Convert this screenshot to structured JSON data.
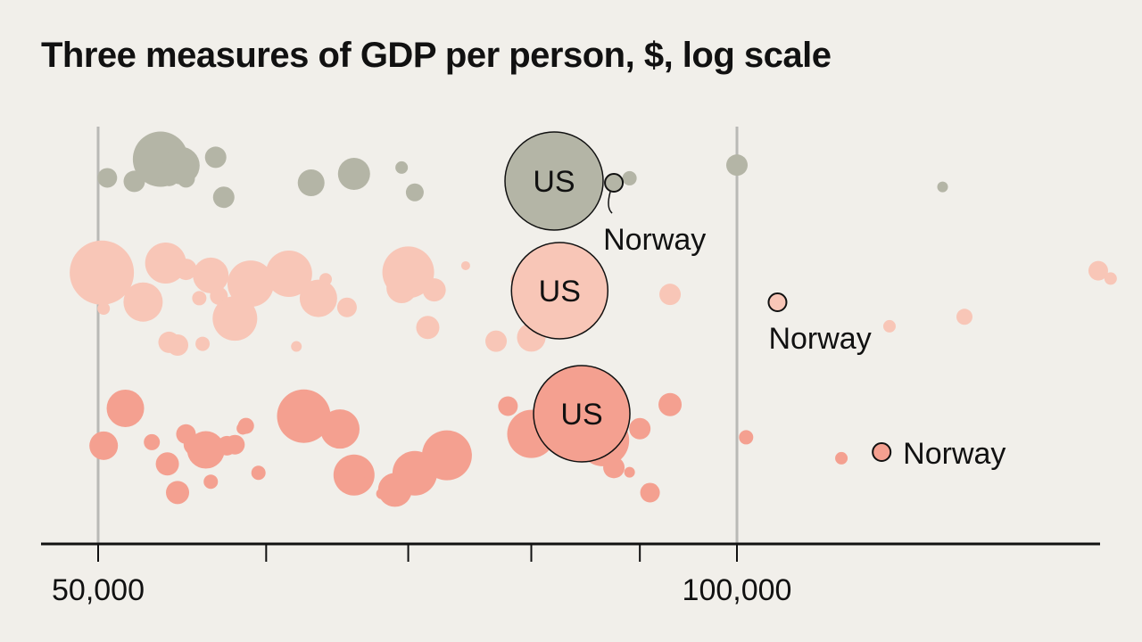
{
  "chart_data": {
    "type": "scatter",
    "title": "Three measures of GDP per person, $, log scale",
    "x_scale": "log",
    "xlim": [
      48000,
      150000
    ],
    "x_ticks": [
      50000,
      100000
    ],
    "x_tick_labels": [
      "50,000",
      "100,000"
    ],
    "minor_ticks": [
      60000,
      70000,
      80000,
      90000
    ],
    "grid_lines": [
      50000,
      100000
    ],
    "marker_size_meaning": "population",
    "colors": {
      "grey": "#b4b5a6",
      "light_pink": "#f8c6b7",
      "salmon": "#f4a090",
      "outline": "#111111"
    },
    "series": [
      {
        "measure": 1,
        "color": "#b4b5a6",
        "points": [
          {
            "x": 50500,
            "size": 11
          },
          {
            "x": 52000,
            "size": 12
          },
          {
            "x": 53500,
            "size": 31
          },
          {
            "x": 54700,
            "size": 21
          },
          {
            "x": 54000,
            "size": 12
          },
          {
            "x": 55000,
            "size": 10
          },
          {
            "x": 56800,
            "size": 12
          },
          {
            "x": 57300,
            "size": 12
          },
          {
            "x": 63000,
            "size": 15
          },
          {
            "x": 66000,
            "size": 18
          },
          {
            "x": 69500,
            "size": 7
          },
          {
            "x": 70500,
            "size": 10
          },
          {
            "x": 78500,
            "size": 5
          },
          {
            "x": 84500,
            "size": 10
          },
          {
            "x": 89000,
            "size": 8
          },
          {
            "x": 100000,
            "size": 12
          },
          {
            "x": 125000,
            "size": 6
          }
        ]
      },
      {
        "measure": 2,
        "color": "#f8c6b7",
        "points": [
          {
            "x": 50200,
            "size": 36
          },
          {
            "x": 50300,
            "size": 7
          },
          {
            "x": 52500,
            "size": 22
          },
          {
            "x": 53500,
            "size": 8
          },
          {
            "x": 53800,
            "size": 23
          },
          {
            "x": 54000,
            "size": 12
          },
          {
            "x": 54500,
            "size": 12
          },
          {
            "x": 55000,
            "size": 12
          },
          {
            "x": 55800,
            "size": 8
          },
          {
            "x": 56000,
            "size": 8
          },
          {
            "x": 56500,
            "size": 20
          },
          {
            "x": 57000,
            "size": 10
          },
          {
            "x": 57500,
            "size": 8
          },
          {
            "x": 58000,
            "size": 25
          },
          {
            "x": 59000,
            "size": 26
          },
          {
            "x": 61500,
            "size": 26
          },
          {
            "x": 62000,
            "size": 6
          },
          {
            "x": 63500,
            "size": 21
          },
          {
            "x": 64000,
            "size": 7
          },
          {
            "x": 65500,
            "size": 11
          },
          {
            "x": 69500,
            "size": 17
          },
          {
            "x": 70000,
            "size": 29
          },
          {
            "x": 71500,
            "size": 13
          },
          {
            "x": 72000,
            "size": 13
          },
          {
            "x": 72000,
            "size": 12
          },
          {
            "x": 74500,
            "size": 5
          },
          {
            "x": 77000,
            "size": 12
          },
          {
            "x": 79000,
            "size": 10
          },
          {
            "x": 80000,
            "size": 16
          },
          {
            "x": 80000,
            "size": 6
          },
          {
            "x": 84000,
            "size": 12
          },
          {
            "x": 86000,
            "size": 6
          },
          {
            "x": 93000,
            "size": 12
          },
          {
            "x": 118000,
            "size": 7
          },
          {
            "x": 128000,
            "size": 9
          },
          {
            "x": 148000,
            "size": 11
          },
          {
            "x": 150000,
            "size": 7
          }
        ]
      },
      {
        "measure": 3,
        "color": "#f4a090",
        "points": [
          {
            "x": 50300,
            "size": 16
          },
          {
            "x": 51000,
            "size": 10
          },
          {
            "x": 51500,
            "size": 21
          },
          {
            "x": 53000,
            "size": 9
          },
          {
            "x": 53800,
            "size": 8
          },
          {
            "x": 53900,
            "size": 13
          },
          {
            "x": 54500,
            "size": 13
          },
          {
            "x": 55000,
            "size": 11
          },
          {
            "x": 55500,
            "size": 12
          },
          {
            "x": 56200,
            "size": 21
          },
          {
            "x": 56300,
            "size": 9
          },
          {
            "x": 56500,
            "size": 8
          },
          {
            "x": 57500,
            "size": 11
          },
          {
            "x": 58000,
            "size": 11
          },
          {
            "x": 58500,
            "size": 7
          },
          {
            "x": 58700,
            "size": 9
          },
          {
            "x": 59500,
            "size": 8
          },
          {
            "x": 62500,
            "size": 30
          },
          {
            "x": 65000,
            "size": 22
          },
          {
            "x": 66000,
            "size": 23
          },
          {
            "x": 66500,
            "size": 8
          },
          {
            "x": 68000,
            "size": 6
          },
          {
            "x": 69000,
            "size": 19
          },
          {
            "x": 69500,
            "size": 7
          },
          {
            "x": 70500,
            "size": 25
          },
          {
            "x": 72500,
            "size": 12
          },
          {
            "x": 73000,
            "size": 28
          },
          {
            "x": 78000,
            "size": 11
          },
          {
            "x": 80000,
            "size": 27
          },
          {
            "x": 81000,
            "size": 10
          },
          {
            "x": 84000,
            "size": 15
          },
          {
            "x": 86500,
            "size": 29
          },
          {
            "x": 87500,
            "size": 12
          },
          {
            "x": 89000,
            "size": 6
          },
          {
            "x": 90000,
            "size": 12
          },
          {
            "x": 91000,
            "size": 11
          },
          {
            "x": 93000,
            "size": 13
          },
          {
            "x": 101000,
            "size": 8
          },
          {
            "x": 112000,
            "size": 7
          }
        ]
      }
    ],
    "highlights": [
      {
        "label": "US",
        "measure": 1,
        "x": 82000,
        "size": 55
      },
      {
        "label": "US",
        "measure": 2,
        "x": 82500,
        "size": 54
      },
      {
        "label": "US",
        "measure": 3,
        "x": 84500,
        "size": 54
      },
      {
        "label": "Norway",
        "measure": 1,
        "x": 87500,
        "size": 10
      },
      {
        "label": "Norway",
        "measure": 2,
        "x": 104500,
        "size": 10
      },
      {
        "label": "Norway",
        "measure": 3,
        "x": 117000,
        "size": 10
      }
    ]
  }
}
